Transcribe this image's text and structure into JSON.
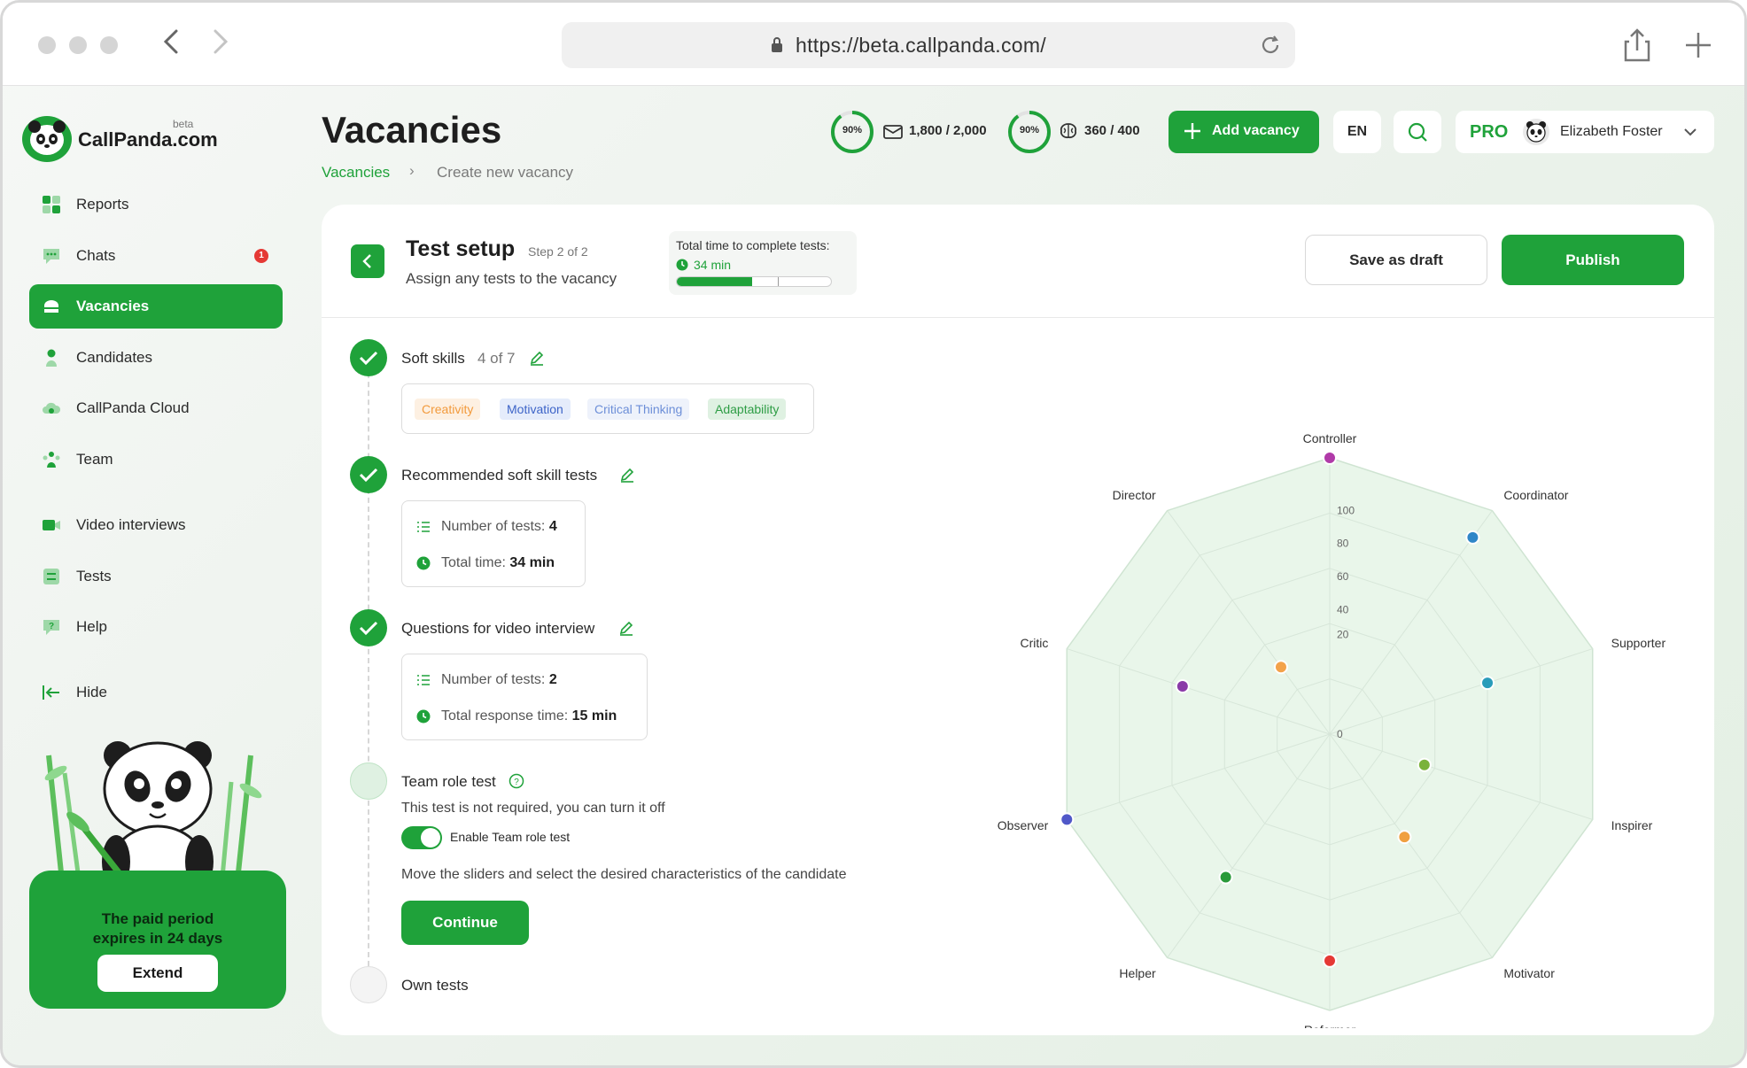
{
  "browser": {
    "url": "https://beta.callpanda.com/"
  },
  "brand": {
    "name": "CallPanda.com",
    "tag": "beta"
  },
  "sidebar": {
    "items": [
      {
        "label": "Reports"
      },
      {
        "label": "Chats",
        "badge": "1"
      },
      {
        "label": "Vacancies"
      },
      {
        "label": "Candidates"
      },
      {
        "label": "CallPanda Cloud"
      },
      {
        "label": "Team"
      },
      {
        "label": "Video interviews"
      },
      {
        "label": "Tests"
      },
      {
        "label": "Help"
      },
      {
        "label": "Hide"
      }
    ],
    "active_index": 2,
    "promo": {
      "line1": "The paid period",
      "line2": "expires in 24 days",
      "button": "Extend"
    }
  },
  "header": {
    "title": "Vacancies",
    "breadcrumb": [
      "Vacancies",
      "Create new vacancy"
    ],
    "stats": [
      {
        "percent_label": "90%",
        "percent": 90,
        "value": "1,800 / 2,000",
        "icon": "mail-icon"
      },
      {
        "percent_label": "90%",
        "percent": 90,
        "value": "360 / 400",
        "icon": "brain-icon"
      }
    ],
    "add_vacancy_label": "Add vacancy",
    "language": "EN",
    "plan": "PRO",
    "user_name": "Elizabeth Foster"
  },
  "test_setup": {
    "title": "Test setup",
    "step": "Step 2 of 2",
    "subtitle": "Assign any tests to the vacancy",
    "total_time_label": "Total time to complete tests:",
    "total_time_value": "34 min",
    "total_time_progress": 0.49,
    "save_draft_label": "Save as draft",
    "publish_label": "Publish"
  },
  "steps": {
    "soft_skills": {
      "title": "Soft skills",
      "count": "4 of 7",
      "tags": [
        {
          "label": "Creativity",
          "color": "#f29a3c",
          "bg": "#fdf0e2"
        },
        {
          "label": "Motivation",
          "color": "#3d64c8",
          "bg": "#e5ecfb"
        },
        {
          "label": "Critical Thinking",
          "color": "#6d8fd8",
          "bg": "#eef2fb"
        },
        {
          "label": "Adaptability",
          "color": "#2e9d45",
          "bg": "#dff1e2"
        }
      ]
    },
    "recommended": {
      "title": "Recommended soft skill tests",
      "tests_label": "Number of tests:",
      "tests_value": "4",
      "time_label": "Total time:",
      "time_value": "34 min"
    },
    "video": {
      "title": "Questions for video interview",
      "tests_label": "Number of tests:",
      "tests_value": "2",
      "time_label": "Total response time:",
      "time_value": "15 min"
    },
    "team_role": {
      "title": "Team role test",
      "note": "This test is not required, you can turn it off",
      "toggle_label": "Enable Team role test",
      "toggle_on": true,
      "slider_note": "Move the sliders and select the desired characteristics of the candidate",
      "continue_label": "Continue"
    },
    "own_tests": {
      "title": "Own tests"
    }
  },
  "chart_data": {
    "type": "radar",
    "axes": [
      "Controller",
      "Coordinator",
      "Supporter",
      "Inspirer",
      "Motivator",
      "Reformer",
      "Helper",
      "Observer",
      "Critic",
      "Director"
    ],
    "values": [
      100,
      88,
      60,
      36,
      46,
      82,
      64,
      100,
      56,
      30
    ],
    "point_colors": [
      "#b03aa8",
      "#2f86c8",
      "#2a9cba",
      "#7ab23a",
      "#f0a040",
      "#e53935",
      "#2a9a3a",
      "#5058c8",
      "#8a3aa8",
      "#f3a24a"
    ],
    "ticks": [
      "0",
      "20",
      "40",
      "60",
      "80",
      "100"
    ],
    "rlim": [
      0,
      100
    ],
    "fill_color": "#e9f6ea",
    "grid": true
  }
}
